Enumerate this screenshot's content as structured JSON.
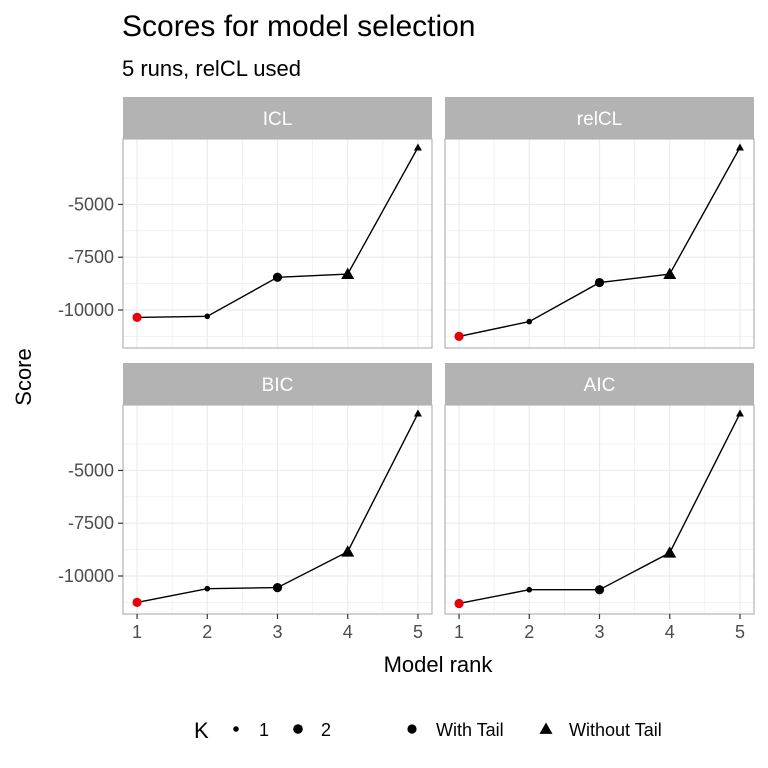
{
  "chart_data": {
    "type": "line",
    "title": "Scores for model selection",
    "subtitle": "5 runs,  relCL used",
    "xlabel": "Model rank",
    "ylabel": "Score",
    "x_ticks": [
      "1",
      "2",
      "3",
      "4",
      "5"
    ],
    "y_ticks": [
      "-5000",
      "-7500",
      "-10000"
    ],
    "y_tick_values": [
      -5000,
      -7500,
      -10000
    ],
    "ylim": [
      -11800,
      -1900
    ],
    "grid": true,
    "facet_layout": "2x2",
    "colors": {
      "default": "#000000",
      "best": "#e8000b",
      "strip": "#b3b3b3",
      "grid": "#ebebeb",
      "panel_border": "#b3b3b3"
    },
    "legend": {
      "position": "bottom",
      "size_title": "K",
      "size_items": [
        {
          "label": "1",
          "k": 1
        },
        {
          "label": "2",
          "k": 2
        }
      ],
      "shape_items": [
        {
          "label": "With Tail",
          "shape": "circle"
        },
        {
          "label": "Without Tail",
          "shape": "triangle"
        }
      ]
    },
    "panels": [
      {
        "name": "ICL",
        "points": [
          {
            "x": 1,
            "y": -10350,
            "k": 2,
            "shape": "circle",
            "best": true
          },
          {
            "x": 2,
            "y": -10300,
            "k": 1,
            "shape": "circle"
          },
          {
            "x": 3,
            "y": -8450,
            "k": 2,
            "shape": "circle"
          },
          {
            "x": 4,
            "y": -8300,
            "k": 2,
            "shape": "triangle"
          },
          {
            "x": 5,
            "y": -2300,
            "k": 1,
            "shape": "triangle"
          }
        ]
      },
      {
        "name": "relCL",
        "points": [
          {
            "x": 1,
            "y": -11250,
            "k": 2,
            "shape": "circle",
            "best": true
          },
          {
            "x": 2,
            "y": -10550,
            "k": 1,
            "shape": "circle"
          },
          {
            "x": 3,
            "y": -8700,
            "k": 2,
            "shape": "circle"
          },
          {
            "x": 4,
            "y": -8300,
            "k": 2,
            "shape": "triangle"
          },
          {
            "x": 5,
            "y": -2300,
            "k": 1,
            "shape": "triangle"
          }
        ]
      },
      {
        "name": "BIC",
        "points": [
          {
            "x": 1,
            "y": -11250,
            "k": 2,
            "shape": "circle",
            "best": true
          },
          {
            "x": 2,
            "y": -10600,
            "k": 1,
            "shape": "circle"
          },
          {
            "x": 3,
            "y": -10550,
            "k": 2,
            "shape": "circle"
          },
          {
            "x": 4,
            "y": -8850,
            "k": 2,
            "shape": "triangle"
          },
          {
            "x": 5,
            "y": -2300,
            "k": 1,
            "shape": "triangle"
          }
        ]
      },
      {
        "name": "AIC",
        "points": [
          {
            "x": 1,
            "y": -11300,
            "k": 2,
            "shape": "circle",
            "best": true
          },
          {
            "x": 2,
            "y": -10650,
            "k": 1,
            "shape": "circle"
          },
          {
            "x": 3,
            "y": -10650,
            "k": 2,
            "shape": "circle"
          },
          {
            "x": 4,
            "y": -8900,
            "k": 2,
            "shape": "triangle"
          },
          {
            "x": 5,
            "y": -2300,
            "k": 1,
            "shape": "triangle"
          }
        ]
      }
    ]
  }
}
